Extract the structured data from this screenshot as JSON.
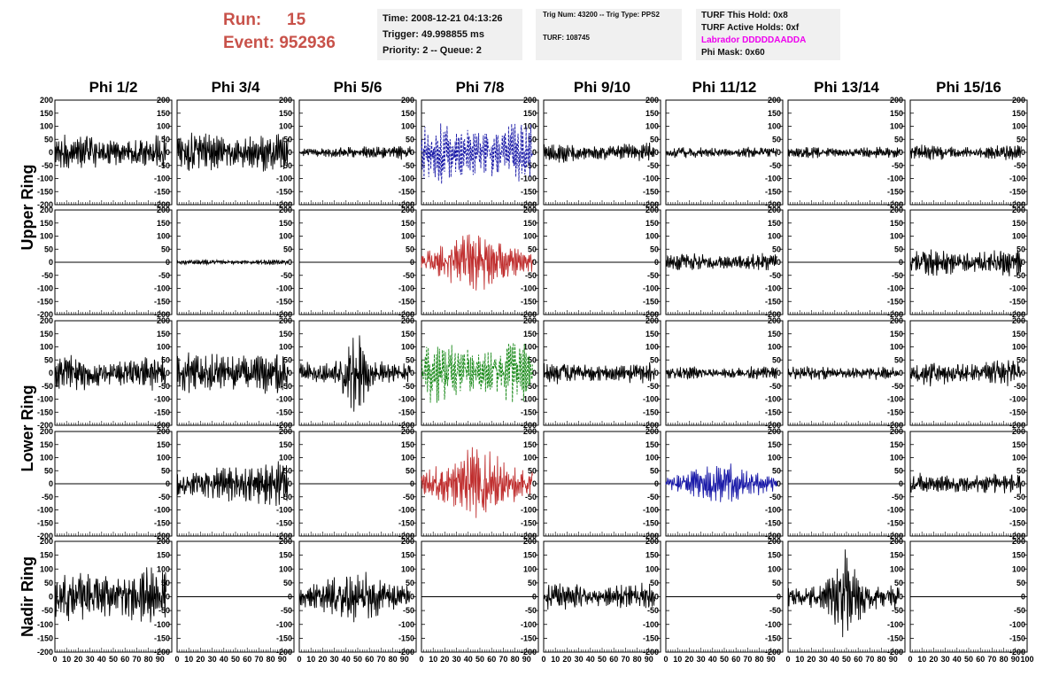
{
  "header": {
    "run_label": "Run:",
    "run_value": "15",
    "event_label": "Event:",
    "event_value": "952936",
    "box1": {
      "time": "Time: 2008-12-21 04:13:26",
      "trigger": "Trigger: 49.998855 ms",
      "priority": "Priority: 2 -- Queue: 2"
    },
    "box2": {
      "trig": "Trig Num: 43200 -- Trig Type: PPS2",
      "turf": "TURF: 108745"
    },
    "box3": {
      "hold": "TURF This Hold: 0x8",
      "active": "TURF Active Holds: 0xf",
      "labrador": "Labrador DDDDDAADDA",
      "mask": "Phi Mask: 0x60"
    }
  },
  "columns": [
    "Phi 1/2",
    "Phi 3/4",
    "Phi 5/6",
    "Phi 7/8",
    "Phi 9/10",
    "Phi 11/12",
    "Phi 13/14",
    "Phi 15/16"
  ],
  "row_labels": {
    "upper": "Upper Ring",
    "lower": "Lower Ring",
    "nadir": "Nadir Ring"
  },
  "chart_data": {
    "type": "line",
    "title": "",
    "xlabel": "",
    "ylabel": "",
    "xlim": [
      0,
      100
    ],
    "ylim": [
      -200,
      200
    ],
    "y_ticks": [
      -200,
      -150,
      -100,
      -50,
      0,
      50,
      100,
      150,
      200
    ],
    "x_ticks": [
      0,
      10,
      20,
      30,
      40,
      50,
      60,
      70,
      80,
      90,
      100
    ],
    "x_tick_labels": [
      "0",
      "10",
      "20",
      "30",
      "40",
      "50",
      "60",
      "70",
      "80",
      "90",
      "100"
    ],
    "panel_x_tick_labels": [
      "0",
      "10",
      "20",
      "30",
      "40",
      "50",
      "60",
      "70",
      "80",
      "90"
    ],
    "last_panel_x_tick_labels": [
      "0",
      "10",
      "20",
      "30",
      "40",
      "50",
      "60",
      "70",
      "80",
      "90",
      "100"
    ],
    "colors": {
      "black": "#000000",
      "blue": "#1a1aa8",
      "red": "#c03030",
      "green": "#1a8a1a"
    },
    "panels": [
      [
        {
          "amp": 55,
          "env": "flat",
          "color": "black",
          "dash": false,
          "end": 95
        },
        {
          "amp": 62,
          "env": "flat",
          "color": "black",
          "dash": false,
          "end": 95
        },
        {
          "amp": 20,
          "env": "rise",
          "color": "black",
          "dash": false,
          "end": 95
        },
        {
          "amp": 95,
          "env": "flat",
          "color": "blue",
          "dash": true,
          "end": 95
        },
        {
          "amp": 32,
          "env": "flat",
          "color": "black",
          "dash": false,
          "end": 95
        },
        {
          "amp": 18,
          "env": "flat",
          "color": "black",
          "dash": false,
          "end": 95
        },
        {
          "amp": 18,
          "env": "flat",
          "color": "black",
          "dash": false,
          "end": 95
        },
        {
          "amp": 25,
          "env": "flat",
          "color": "black",
          "dash": false,
          "end": 95
        }
      ],
      [
        {
          "amp": 0,
          "env": "flat",
          "color": "black",
          "dash": false,
          "end": 100
        },
        {
          "amp": 8,
          "env": "flat",
          "color": "black",
          "dash": false,
          "end": 95
        },
        {
          "amp": 0,
          "env": "flat",
          "color": "black",
          "dash": false,
          "end": 100
        },
        {
          "amp": 85,
          "env": "mid",
          "color": "red",
          "dash": false,
          "end": 95
        },
        {
          "amp": 0,
          "env": "flat",
          "color": "black",
          "dash": false,
          "end": 100
        },
        {
          "amp": 28,
          "env": "flat",
          "color": "black",
          "dash": false,
          "end": 95
        },
        {
          "amp": 0,
          "env": "flat",
          "color": "black",
          "dash": false,
          "end": 100
        },
        {
          "amp": 45,
          "env": "flat",
          "color": "black",
          "dash": false,
          "end": 95
        }
      ],
      [
        {
          "amp": 55,
          "env": "flat",
          "color": "black",
          "dash": false,
          "end": 95
        },
        {
          "amp": 70,
          "env": "flat",
          "color": "black",
          "dash": false,
          "end": 95
        },
        {
          "amp": 110,
          "env": "burst",
          "color": "black",
          "dash": false,
          "end": 95
        },
        {
          "amp": 95,
          "env": "flat",
          "color": "green",
          "dash": true,
          "end": 95
        },
        {
          "amp": 35,
          "env": "flat",
          "color": "black",
          "dash": false,
          "end": 95
        },
        {
          "amp": 22,
          "env": "flat",
          "color": "black",
          "dash": false,
          "end": 95
        },
        {
          "amp": 22,
          "env": "flat",
          "color": "black",
          "dash": false,
          "end": 95
        },
        {
          "amp": 40,
          "env": "flat",
          "color": "black",
          "dash": false,
          "end": 95
        }
      ],
      [
        {
          "amp": 0,
          "env": "flat",
          "color": "black",
          "dash": false,
          "end": 100
        },
        {
          "amp": 65,
          "env": "rise",
          "color": "black",
          "dash": false,
          "end": 95
        },
        {
          "amp": 0,
          "env": "flat",
          "color": "black",
          "dash": false,
          "end": 100
        },
        {
          "amp": 100,
          "env": "mid",
          "color": "red",
          "dash": false,
          "end": 95
        },
        {
          "amp": 0,
          "env": "flat",
          "color": "black",
          "dash": false,
          "end": 100
        },
        {
          "amp": 60,
          "env": "mid",
          "color": "blue",
          "dash": false,
          "end": 95
        },
        {
          "amp": 0,
          "env": "flat",
          "color": "black",
          "dash": false,
          "end": 100
        },
        {
          "amp": 35,
          "env": "flat",
          "color": "black",
          "dash": false,
          "end": 95
        }
      ],
      [
        {
          "amp": 85,
          "env": "flat",
          "color": "black",
          "dash": false,
          "end": 95
        },
        {
          "amp": 0,
          "env": "flat",
          "color": "black",
          "dash": false,
          "end": 100
        },
        {
          "amp": 70,
          "env": "mid",
          "color": "black",
          "dash": false,
          "end": 95
        },
        {
          "amp": 0,
          "env": "flat",
          "color": "black",
          "dash": false,
          "end": 100
        },
        {
          "amp": 40,
          "env": "flat",
          "color": "black",
          "dash": false,
          "end": 95
        },
        {
          "amp": 0,
          "env": "flat",
          "color": "black",
          "dash": false,
          "end": 100
        },
        {
          "amp": 115,
          "env": "burst",
          "color": "black",
          "dash": false,
          "end": 95
        },
        {
          "amp": 0,
          "env": "flat",
          "color": "black",
          "dash": false,
          "end": 100
        }
      ]
    ]
  }
}
